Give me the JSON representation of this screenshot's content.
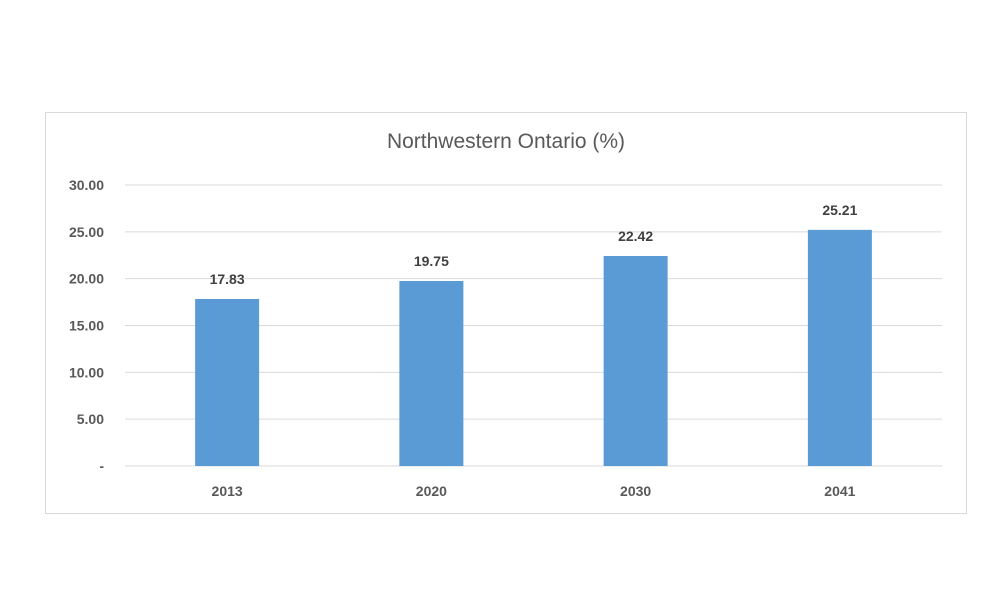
{
  "chart_data": {
    "type": "bar",
    "title": "Northwestern Ontario (%)",
    "categories": [
      "2013",
      "2020",
      "2030",
      "2041"
    ],
    "values": [
      17.83,
      19.75,
      22.42,
      25.21
    ],
    "data_labels": [
      "17.83",
      "19.75",
      "22.42",
      "25.21"
    ],
    "ylim": [
      0,
      30
    ],
    "yticks": [
      0,
      5,
      10,
      15,
      20,
      25,
      30
    ],
    "ytick_labels": [
      "-",
      "5.00",
      "10.00",
      "15.00",
      "20.00",
      "25.00",
      "30.00"
    ],
    "xlabel": "",
    "ylabel": "",
    "grid": true,
    "bar_color": "#5b9bd5",
    "grid_color": "#d9d9d9"
  }
}
